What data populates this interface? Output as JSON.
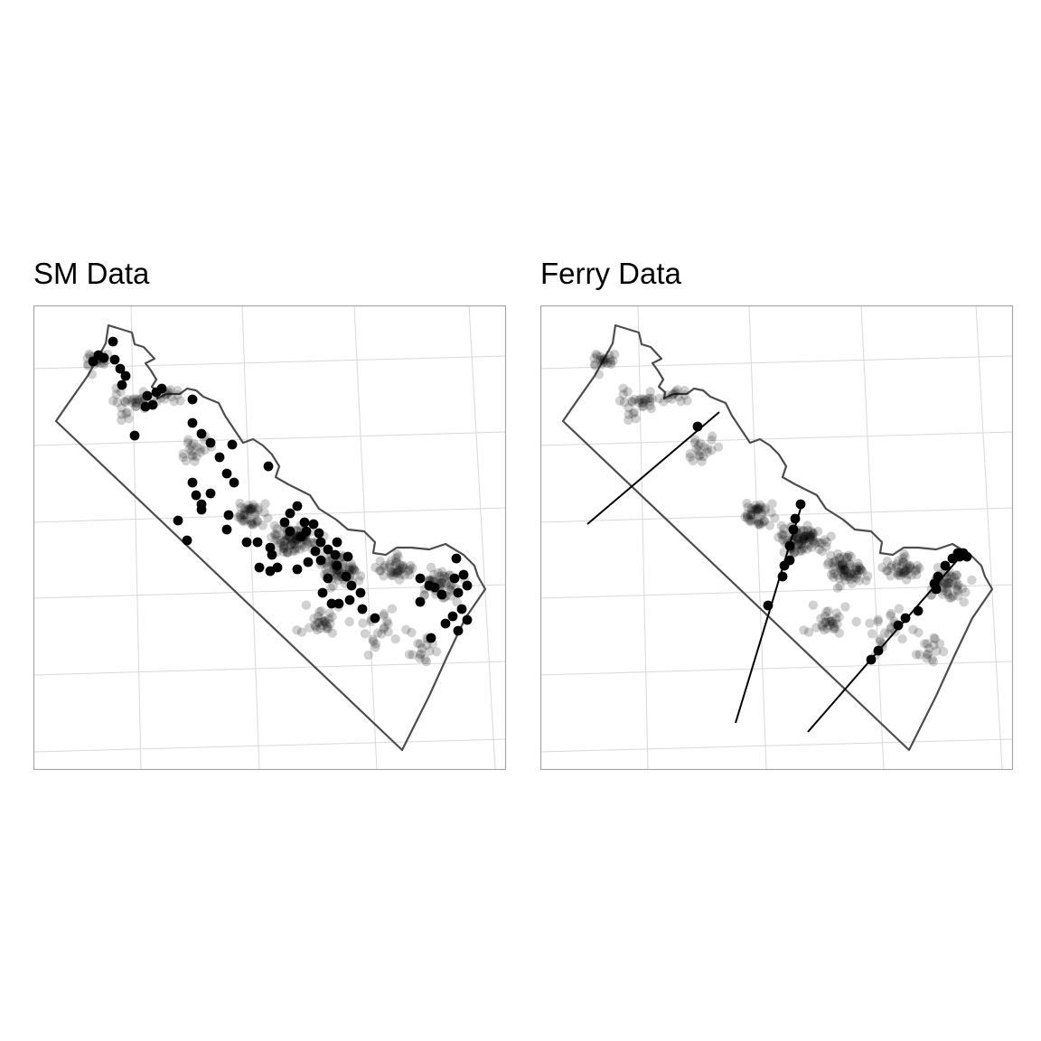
{
  "figure": {
    "panels": [
      {
        "id": "sm",
        "title": "SM Data"
      },
      {
        "id": "ferry",
        "title": "Ferry Data"
      }
    ]
  },
  "colors": {
    "background": "#ffffff",
    "panel_border": "#a6a6a6",
    "graticule": "#d9d9d9",
    "outline": "#4d4d4d",
    "faded_point": "#000000",
    "highlight_point": "#000000"
  },
  "map_data": {
    "type": "map",
    "region_outline": "coastal strip (polygon, no labels shown)",
    "layers": [
      "graticule grid",
      "region outline",
      "all sites (faded)",
      "selected sites (solid)"
    ],
    "ferry_lines": 3,
    "legend": "none",
    "axis_labels": "none"
  }
}
